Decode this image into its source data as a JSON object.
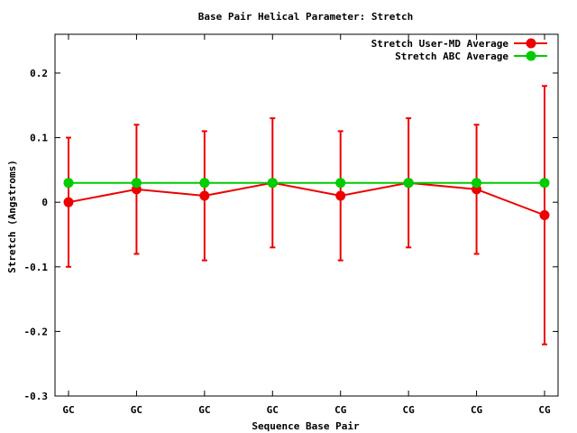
{
  "chart_data": {
    "type": "line",
    "title": "Base Pair Helical Parameter: Stretch",
    "xlabel": "Sequence Base Pair",
    "ylabel": "Stretch (Angstroms)",
    "categories": [
      "GC",
      "GC",
      "GC",
      "GC",
      "CG",
      "CG",
      "CG",
      "CG"
    ],
    "ylim": [
      -0.3,
      0.26
    ],
    "yticks": [
      -0.3,
      -0.2,
      -0.1,
      0,
      0.1,
      0.2
    ],
    "ytick_labels": [
      "-0.3",
      "-0.2",
      "-0.1",
      "0",
      "0.1",
      "0.2"
    ],
    "grid": false,
    "legend_position": "top-right",
    "series": [
      {
        "name": "Stretch User-MD Average",
        "color": "#ee0000",
        "values": [
          0.0,
          0.02,
          0.01,
          0.03,
          0.01,
          0.03,
          0.02,
          -0.02
        ],
        "error": [
          0.1,
          0.1,
          0.1,
          0.1,
          0.1,
          0.1,
          0.1,
          0.2
        ]
      },
      {
        "name": "Stretch ABC Average",
        "color": "#00cc00",
        "values": [
          0.03,
          0.03,
          0.03,
          0.03,
          0.03,
          0.03,
          0.03,
          0.03
        ]
      }
    ]
  }
}
